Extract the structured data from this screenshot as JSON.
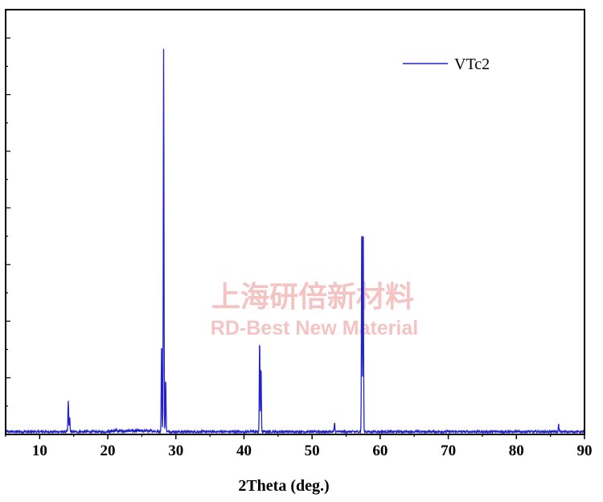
{
  "chart_data": {
    "type": "line",
    "xlabel": "2Theta (deg.)",
    "ylabel": "",
    "xlim": [
      5,
      90
    ],
    "ylim": [
      0,
      1000
    ],
    "x_ticks": [
      10,
      20,
      30,
      40,
      50,
      60,
      70,
      80,
      90
    ],
    "x_tick_labels": [
      "10",
      "20",
      "30",
      "40",
      "50",
      "60",
      "70",
      "80",
      "90"
    ],
    "y_tick_labels_visible": false,
    "grid": false,
    "legend_position": "top-right",
    "series": [
      {
        "name": "VTc2",
        "color": "#2222cc",
        "baseline": 4,
        "noise_amplitude": 6,
        "peaks": [
          {
            "x": 14.2,
            "y": 82
          },
          {
            "x": 14.4,
            "y": 40
          },
          {
            "x": 27.9,
            "y": 235
          },
          {
            "x": 28.2,
            "y": 1000
          },
          {
            "x": 28.5,
            "y": 140
          },
          {
            "x": 42.3,
            "y": 242
          },
          {
            "x": 42.5,
            "y": 168
          },
          {
            "x": 53.3,
            "y": 22
          },
          {
            "x": 57.3,
            "y": 550
          },
          {
            "x": 57.5,
            "y": 550
          },
          {
            "x": 86.2,
            "y": 18
          }
        ]
      }
    ]
  },
  "watermark": {
    "chinese": "上海研倍新材料",
    "english": "RD-Best New Material"
  }
}
